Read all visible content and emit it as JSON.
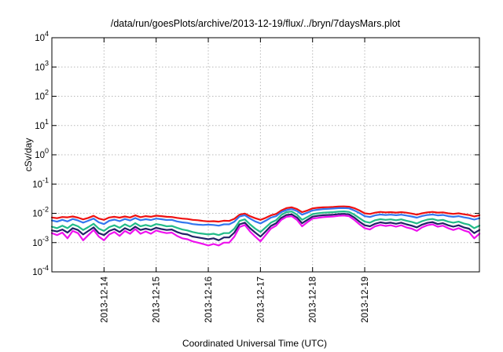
{
  "chart_data": {
    "type": "line",
    "title": "/data/run/goesPlots/archive/2013-12-19/flux/../bryn/7daysMars.plot",
    "xlabel": "Coordinated Universal Time (UTC)",
    "ylabel": "cSv/day",
    "yscale": "log",
    "ylim_exponent": [
      -4,
      4
    ],
    "yticks": [
      {
        "base": "10",
        "exp": "-4",
        "value": 0.0001
      },
      {
        "base": "10",
        "exp": "-3",
        "value": 0.001
      },
      {
        "base": "10",
        "exp": "-2",
        "value": 0.01
      },
      {
        "base": "10",
        "exp": "-1",
        "value": 0.1
      },
      {
        "base": "10",
        "exp": "0",
        "value": 1
      },
      {
        "base": "10",
        "exp": "1",
        "value": 10
      },
      {
        "base": "10",
        "exp": "2",
        "value": 100
      },
      {
        "base": "10",
        "exp": "3",
        "value": 1000
      },
      {
        "base": "10",
        "exp": "4",
        "value": 10000
      }
    ],
    "xlim": [
      0,
      8.2
    ],
    "xticks": [
      {
        "label": "2013-12-14",
        "value": 1
      },
      {
        "label": "2013-12-15",
        "value": 2
      },
      {
        "label": "2013-12-16",
        "value": 3
      },
      {
        "label": "2013-12-17",
        "value": 4
      },
      {
        "label": "2013-12-18",
        "value": 5
      },
      {
        "label": "2013-12-19",
        "value": 6
      }
    ],
    "grid": true,
    "x": [
      0.0,
      0.1,
      0.2,
      0.3,
      0.4,
      0.5,
      0.6,
      0.7,
      0.8,
      0.9,
      1.0,
      1.1,
      1.2,
      1.3,
      1.4,
      1.5,
      1.6,
      1.7,
      1.8,
      1.9,
      2.0,
      2.1,
      2.2,
      2.3,
      2.4,
      2.5,
      2.6,
      2.7,
      2.8,
      2.9,
      3.0,
      3.1,
      3.2,
      3.3,
      3.4,
      3.5,
      3.6,
      3.7,
      3.8,
      3.9,
      4.0,
      4.1,
      4.2,
      4.3,
      4.4,
      4.5,
      4.6,
      4.7,
      4.8,
      4.9,
      5.0,
      5.1,
      5.2,
      5.3,
      5.4,
      5.5,
      5.6,
      5.7,
      5.8,
      5.9,
      6.0,
      6.1,
      6.2,
      6.3,
      6.4,
      6.5,
      6.6,
      6.7,
      6.8,
      6.9,
      7.0,
      7.1,
      7.2,
      7.3,
      7.4,
      7.5,
      7.6,
      7.7,
      7.8,
      7.9,
      8.0,
      8.1,
      8.2
    ],
    "series": [
      {
        "name": "red",
        "color": "#ee1111",
        "values": [
          0.0072,
          0.0068,
          0.0075,
          0.0073,
          0.0078,
          0.0071,
          0.0062,
          0.007,
          0.0082,
          0.0066,
          0.006,
          0.0072,
          0.0076,
          0.0071,
          0.0078,
          0.0072,
          0.0085,
          0.0074,
          0.008,
          0.0076,
          0.0083,
          0.008,
          0.0076,
          0.0075,
          0.007,
          0.0066,
          0.0064,
          0.006,
          0.0058,
          0.0055,
          0.0053,
          0.0054,
          0.0052,
          0.0056,
          0.0055,
          0.0065,
          0.009,
          0.0098,
          0.008,
          0.0068,
          0.006,
          0.007,
          0.0085,
          0.0095,
          0.0125,
          0.015,
          0.016,
          0.014,
          0.011,
          0.0125,
          0.0148,
          0.0155,
          0.016,
          0.0162,
          0.0165,
          0.017,
          0.0172,
          0.0168,
          0.015,
          0.0125,
          0.01,
          0.0095,
          0.0105,
          0.0112,
          0.0108,
          0.011,
          0.0106,
          0.011,
          0.0105,
          0.0098,
          0.009,
          0.01,
          0.0108,
          0.0112,
          0.0106,
          0.0108,
          0.01,
          0.0096,
          0.01,
          0.0093,
          0.0088,
          0.0078,
          0.0086
        ]
      },
      {
        "name": "blue",
        "color": "#3377ee",
        "values": [
          0.0057,
          0.0052,
          0.006,
          0.0053,
          0.0064,
          0.0057,
          0.0048,
          0.0056,
          0.0066,
          0.0049,
          0.0043,
          0.0056,
          0.0061,
          0.0054,
          0.0064,
          0.0057,
          0.0069,
          0.0058,
          0.0063,
          0.0059,
          0.0066,
          0.0063,
          0.0059,
          0.006,
          0.0053,
          0.0049,
          0.0047,
          0.0043,
          0.0041,
          0.004,
          0.0041,
          0.004,
          0.0038,
          0.0042,
          0.0042,
          0.0052,
          0.0078,
          0.0086,
          0.0066,
          0.0053,
          0.0045,
          0.0056,
          0.0071,
          0.008,
          0.011,
          0.013,
          0.014,
          0.012,
          0.009,
          0.0105,
          0.0126,
          0.0133,
          0.014,
          0.0142,
          0.0146,
          0.015,
          0.0151,
          0.0148,
          0.0126,
          0.0102,
          0.008,
          0.0075,
          0.0085,
          0.0091,
          0.0088,
          0.009,
          0.0086,
          0.009,
          0.0084,
          0.0078,
          0.0071,
          0.0081,
          0.0088,
          0.0091,
          0.0085,
          0.0088,
          0.008,
          0.0076,
          0.008,
          0.0073,
          0.0068,
          0.0061,
          0.0068
        ]
      },
      {
        "name": "teal",
        "color": "#22bb88",
        "values": [
          0.0035,
          0.0031,
          0.0038,
          0.0031,
          0.0042,
          0.0036,
          0.0027,
          0.0034,
          0.0044,
          0.003,
          0.0025,
          0.0034,
          0.0039,
          0.0032,
          0.0042,
          0.0035,
          0.0046,
          0.0036,
          0.004,
          0.0036,
          0.0043,
          0.004,
          0.0036,
          0.0037,
          0.0032,
          0.0028,
          0.0026,
          0.0023,
          0.0021,
          0.002,
          0.0019,
          0.002,
          0.0018,
          0.0021,
          0.0021,
          0.003,
          0.0055,
          0.0062,
          0.0042,
          0.003,
          0.0023,
          0.0033,
          0.0048,
          0.0058,
          0.0088,
          0.011,
          0.0115,
          0.009,
          0.006,
          0.0075,
          0.0094,
          0.01,
          0.0105,
          0.0107,
          0.011,
          0.0114,
          0.0116,
          0.0112,
          0.009,
          0.0068,
          0.0052,
          0.0048,
          0.0058,
          0.0063,
          0.006,
          0.0062,
          0.0058,
          0.0062,
          0.0056,
          0.0051,
          0.0045,
          0.0054,
          0.0061,
          0.0064,
          0.0057,
          0.006,
          0.0052,
          0.0048,
          0.0052,
          0.0045,
          0.0041,
          0.0031,
          0.0038
        ]
      },
      {
        "name": "navy",
        "color": "#222266",
        "values": [
          0.0026,
          0.0024,
          0.0028,
          0.0022,
          0.0031,
          0.0027,
          0.0019,
          0.0025,
          0.0033,
          0.0021,
          0.0018,
          0.0025,
          0.0029,
          0.0023,
          0.0031,
          0.0026,
          0.0035,
          0.0027,
          0.003,
          0.0027,
          0.0032,
          0.0029,
          0.0027,
          0.0028,
          0.0023,
          0.002,
          0.0019,
          0.0016,
          0.0015,
          0.0014,
          0.0013,
          0.0014,
          0.0012,
          0.0015,
          0.0015,
          0.0022,
          0.0042,
          0.0048,
          0.0031,
          0.0022,
          0.0016,
          0.0024,
          0.0037,
          0.0046,
          0.007,
          0.0088,
          0.0092,
          0.0072,
          0.0046,
          0.006,
          0.0077,
          0.0082,
          0.0086,
          0.0088,
          0.009,
          0.0094,
          0.0096,
          0.0092,
          0.0072,
          0.0052,
          0.0039,
          0.0036,
          0.0044,
          0.0049,
          0.0046,
          0.0048,
          0.0044,
          0.0048,
          0.0042,
          0.0038,
          0.0033,
          0.0041,
          0.0047,
          0.005,
          0.0043,
          0.0046,
          0.0039,
          0.0035,
          0.0039,
          0.0033,
          0.003,
          0.0021,
          0.0027
        ]
      },
      {
        "name": "magenta",
        "color": "#ee11ee",
        "values": [
          0.0021,
          0.0018,
          0.0022,
          0.0014,
          0.0025,
          0.0021,
          0.0012,
          0.0018,
          0.0027,
          0.0016,
          0.0012,
          0.0019,
          0.0023,
          0.0017,
          0.0025,
          0.002,
          0.0029,
          0.002,
          0.0024,
          0.002,
          0.0026,
          0.0023,
          0.0021,
          0.0022,
          0.0017,
          0.0014,
          0.0013,
          0.0011,
          0.001,
          0.0009,
          0.0008,
          0.0009,
          0.0008,
          0.001,
          0.001,
          0.0016,
          0.0034,
          0.004,
          0.0024,
          0.0016,
          0.0011,
          0.0018,
          0.003,
          0.0038,
          0.006,
          0.0076,
          0.008,
          0.006,
          0.0036,
          0.005,
          0.0066,
          0.007,
          0.0074,
          0.0076,
          0.0078,
          0.0082,
          0.0084,
          0.008,
          0.006,
          0.0042,
          0.0031,
          0.0028,
          0.0036,
          0.004,
          0.0037,
          0.0039,
          0.0035,
          0.0039,
          0.0033,
          0.003,
          0.0025,
          0.0033,
          0.0039,
          0.0042,
          0.0035,
          0.0038,
          0.0031,
          0.0027,
          0.0031,
          0.0026,
          0.0023,
          0.0014,
          0.002
        ]
      }
    ]
  }
}
